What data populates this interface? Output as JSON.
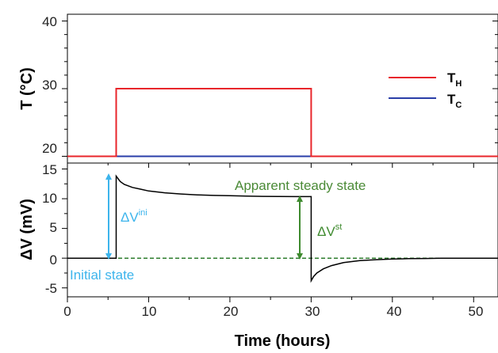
{
  "colors": {
    "t_hot": "#e8262b",
    "t_cold": "#2a3ea8",
    "voltage": "#000000",
    "baseline": "#2e7d2e",
    "ini_arrow": "#3cb4ec",
    "st_arrow": "#3e8a2e",
    "st_text": "#4a8a36",
    "ini_text": "#3cb4ec"
  },
  "chart_data": [
    {
      "type": "line",
      "panel": "top",
      "ylabel": "T (°C)",
      "yticks": [
        "20",
        "30",
        "40"
      ],
      "ylim": [
        19,
        41
      ],
      "xlim": [
        0,
        53
      ],
      "grid": false,
      "legend_position": "top-right",
      "legend": [
        {
          "symbol": "T",
          "sub": "H"
        },
        {
          "symbol": "T",
          "sub": "C"
        }
      ],
      "series": [
        {
          "name": "TH",
          "x": [
            0,
            6,
            6,
            30,
            30,
            53
          ],
          "y": [
            20,
            20,
            30,
            30,
            20,
            20
          ]
        },
        {
          "name": "TC",
          "x": [
            0,
            53
          ],
          "y": [
            20,
            20
          ]
        }
      ]
    },
    {
      "type": "line",
      "panel": "bottom",
      "xlabel": "Time (hours)",
      "ylabel": "ΔV (mV)",
      "xticks": [
        "0",
        "10",
        "20",
        "30",
        "40",
        "50"
      ],
      "yticks": [
        "-5",
        "0",
        "5",
        "10",
        "15"
      ],
      "xlim": [
        0,
        53
      ],
      "ylim": [
        -6.5,
        16
      ],
      "grid": false,
      "series": [
        {
          "name": "ΔV",
          "x": [
            0,
            6,
            6,
            6.5,
            7,
            8,
            9,
            10,
            12,
            14,
            16,
            18,
            20,
            22,
            24,
            26,
            28,
            30,
            30,
            30.3,
            30.7,
            31.5,
            32.5,
            34,
            36,
            38,
            40,
            42,
            44,
            46,
            48,
            50,
            53
          ],
          "y": [
            0,
            0,
            13.8,
            12.9,
            12.4,
            11.9,
            11.6,
            11.3,
            11.0,
            10.8,
            10.65,
            10.55,
            10.5,
            10.45,
            10.4,
            10.38,
            10.36,
            10.35,
            -3.8,
            -3.1,
            -2.5,
            -1.8,
            -1.25,
            -0.75,
            -0.42,
            -0.25,
            -0.15,
            -0.08,
            -0.05,
            -0.02,
            0,
            0,
            0
          ]
        },
        {
          "name": "baseline",
          "x": [
            0,
            53
          ],
          "y": [
            0,
            0
          ]
        }
      ],
      "annotations": [
        {
          "text": "Apparent steady state"
        },
        {
          "base": "ΔV",
          "sup": "st"
        },
        {
          "base": "ΔV",
          "sup": "ini"
        },
        {
          "text": "Initial state"
        }
      ]
    }
  ]
}
